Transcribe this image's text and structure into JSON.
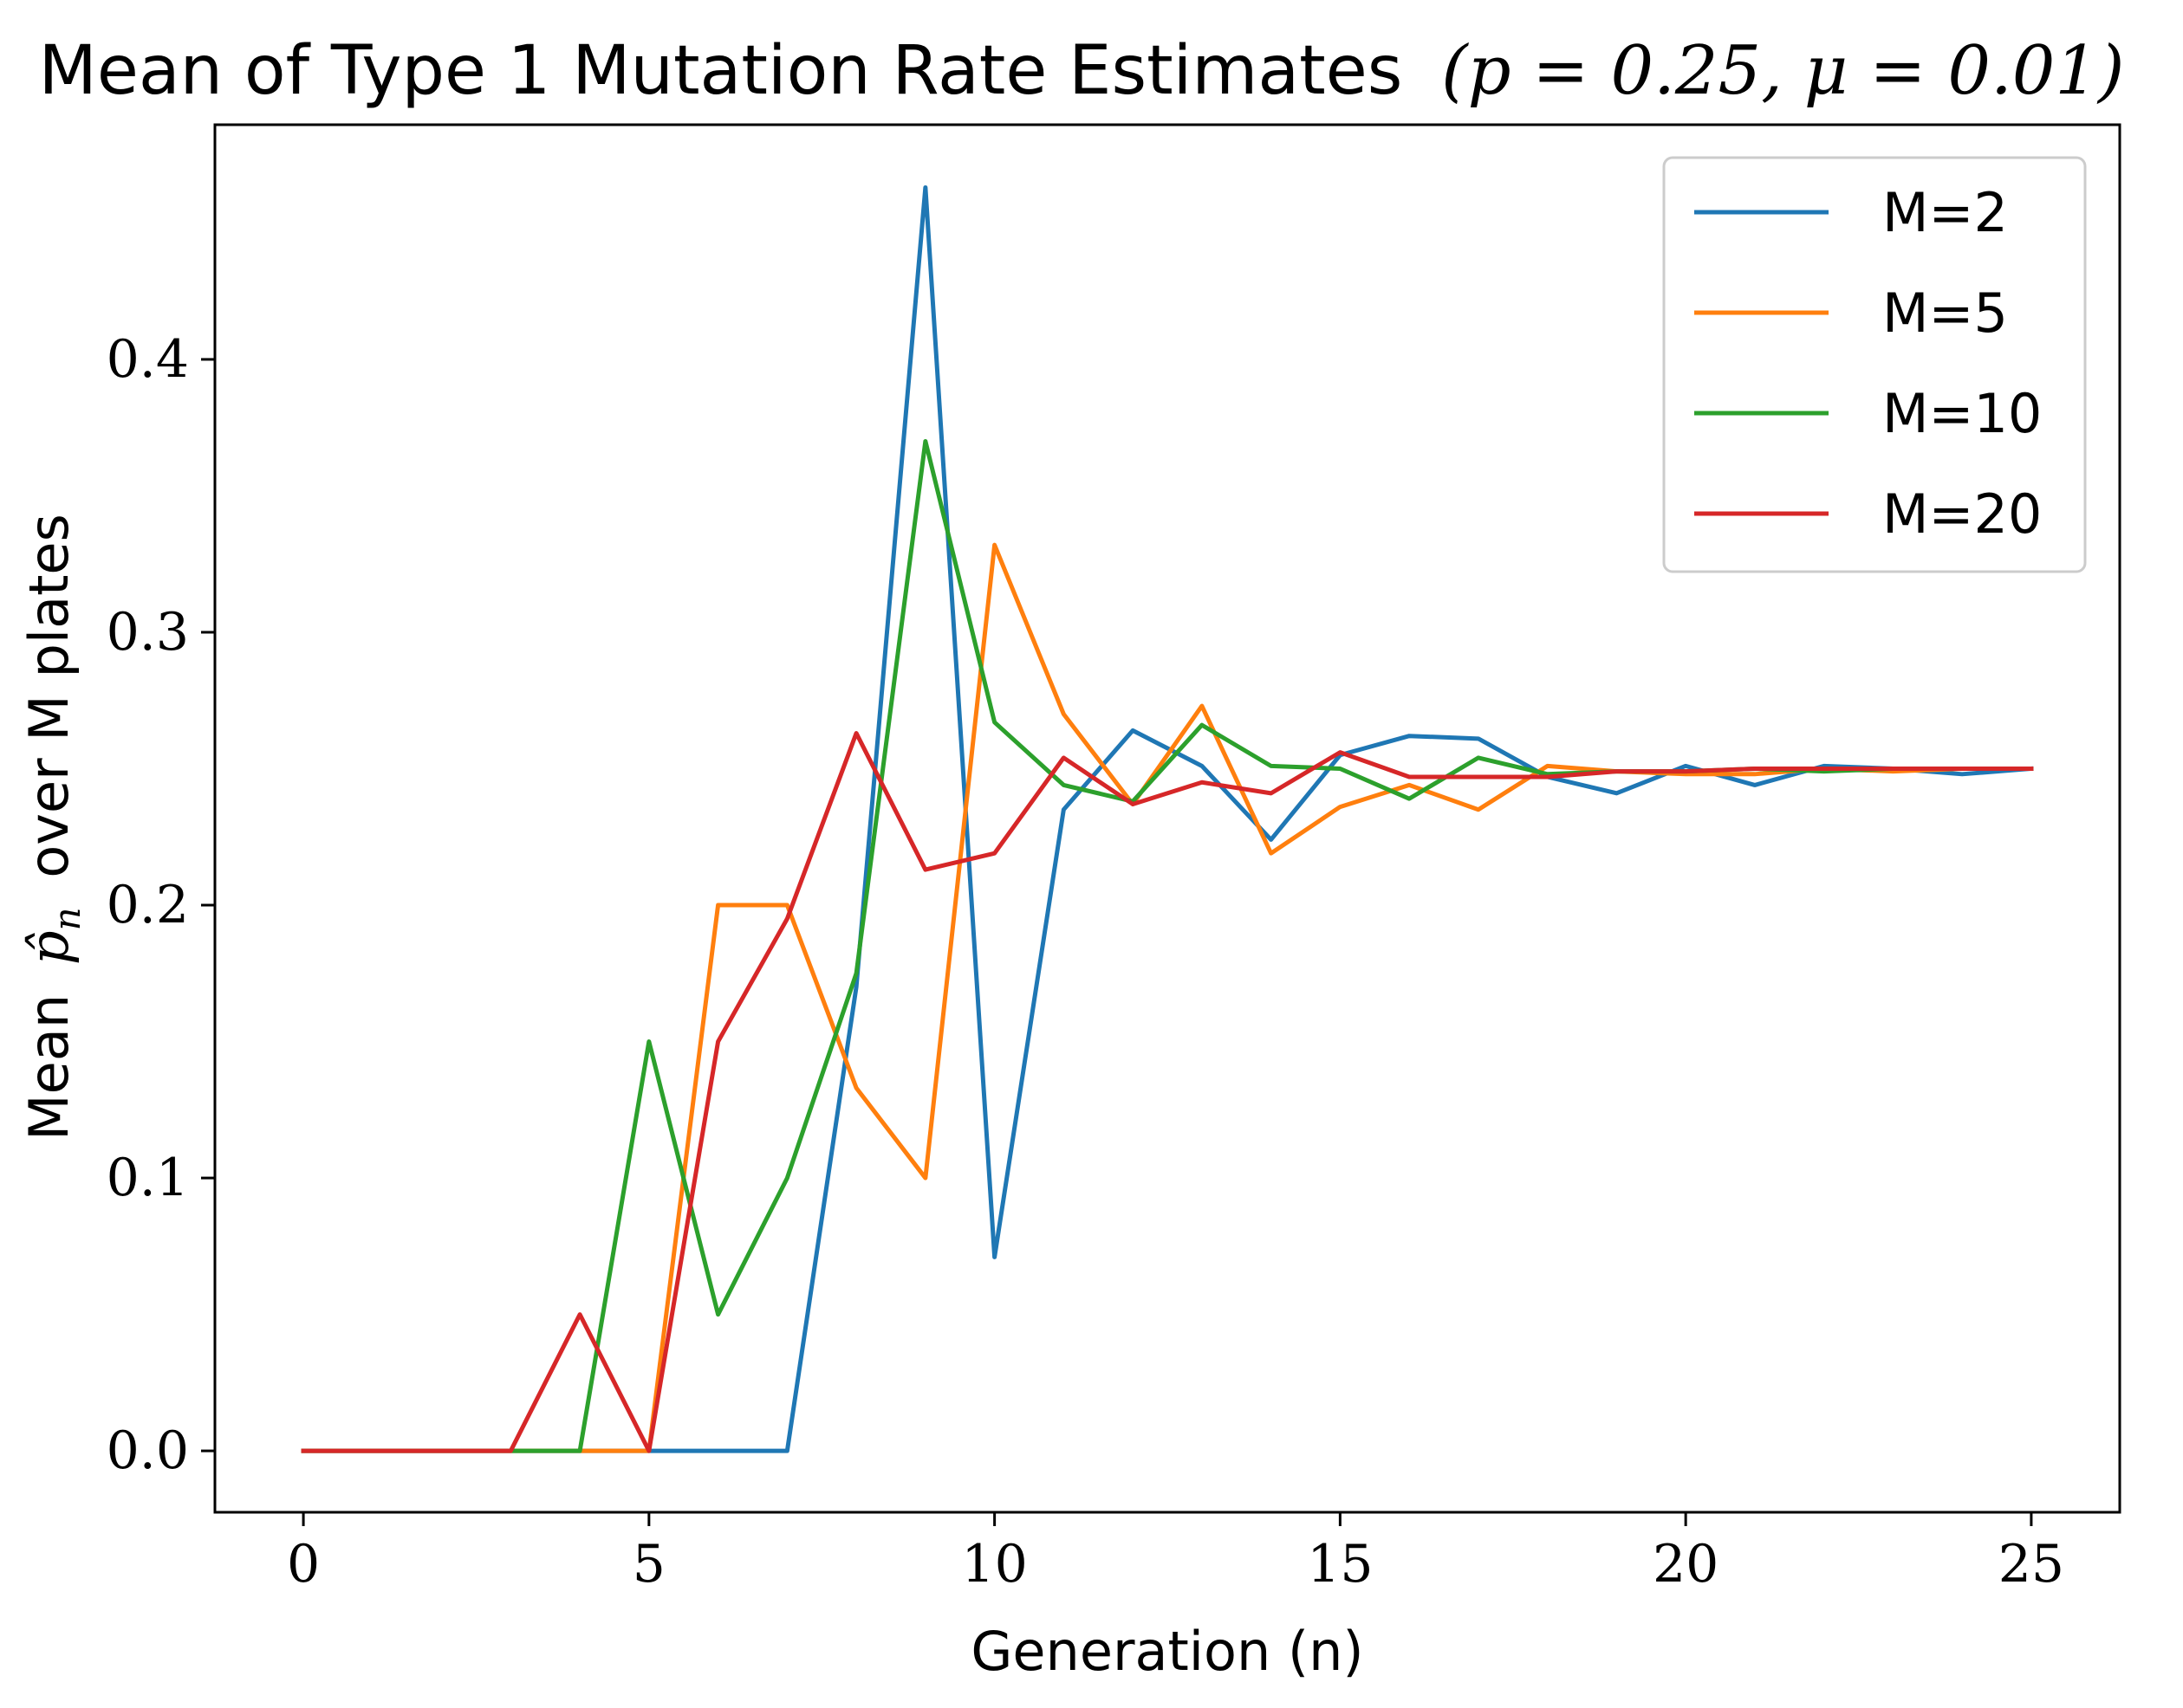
{
  "chart_data": {
    "type": "line",
    "title": "Mean of Type 1 Mutation Rate Estimates",
    "title_math": "(p = 0.25, μ = 0.01)",
    "xlabel": "Generation (n)",
    "ylabel_prefix": "Mean",
    "ylabel_math": "p̂",
    "ylabel_math_sub": "n",
    "ylabel_suffix": "over M plates",
    "xlim": [
      -1.28,
      26.28
    ],
    "ylim": [
      -0.0225,
      0.486
    ],
    "xticks": [
      0,
      5,
      10,
      15,
      20,
      25
    ],
    "xtick_labels": [
      "0",
      "5",
      "10",
      "15",
      "20",
      "25"
    ],
    "yticks": [
      0.0,
      0.1,
      0.2,
      0.3,
      0.4
    ],
    "ytick_labels": [
      "0.0",
      "0.1",
      "0.2",
      "0.3",
      "0.4"
    ],
    "legend_position": "top-right",
    "x": [
      0,
      1,
      2,
      3,
      4,
      5,
      6,
      7,
      8,
      9,
      10,
      11,
      12,
      13,
      14,
      15,
      16,
      17,
      18,
      19,
      20,
      21,
      22,
      23,
      24,
      25
    ],
    "series": [
      {
        "name": "M=2",
        "color": "#1f77b4",
        "values": [
          0,
          0,
          0,
          0,
          0,
          0,
          0,
          0,
          0.17,
          0.463,
          0.071,
          0.235,
          0.264,
          0.251,
          0.224,
          0.255,
          0.262,
          0.261,
          0.247,
          0.241,
          0.251,
          0.244,
          0.251,
          0.25,
          0.248,
          0.25
        ]
      },
      {
        "name": "M=5",
        "color": "#ff7f0e",
        "values": [
          0,
          0,
          0,
          0,
          0,
          0,
          0.2,
          0.2,
          0.133,
          0.1,
          0.332,
          0.27,
          0.237,
          0.273,
          0.219,
          0.236,
          0.244,
          0.235,
          0.251,
          0.249,
          0.248,
          0.248,
          0.25,
          0.249,
          0.25,
          0.25
        ]
      },
      {
        "name": "M=10",
        "color": "#2ca02c",
        "values": [
          0,
          0,
          0,
          0,
          0,
          0.15,
          0.05,
          0.1,
          0.175,
          0.37,
          0.267,
          0.244,
          0.238,
          0.266,
          0.251,
          0.25,
          0.239,
          0.254,
          0.248,
          0.249,
          0.249,
          0.25,
          0.249,
          0.25,
          0.25,
          0.25
        ]
      },
      {
        "name": "M=20",
        "color": "#d62728",
        "values": [
          0,
          0,
          0,
          0,
          0.05,
          0,
          0.15,
          0.195,
          0.263,
          0.213,
          0.219,
          0.254,
          0.237,
          0.245,
          0.241,
          0.256,
          0.247,
          0.247,
          0.247,
          0.249,
          0.249,
          0.25,
          0.25,
          0.25,
          0.25,
          0.25
        ]
      }
    ]
  }
}
